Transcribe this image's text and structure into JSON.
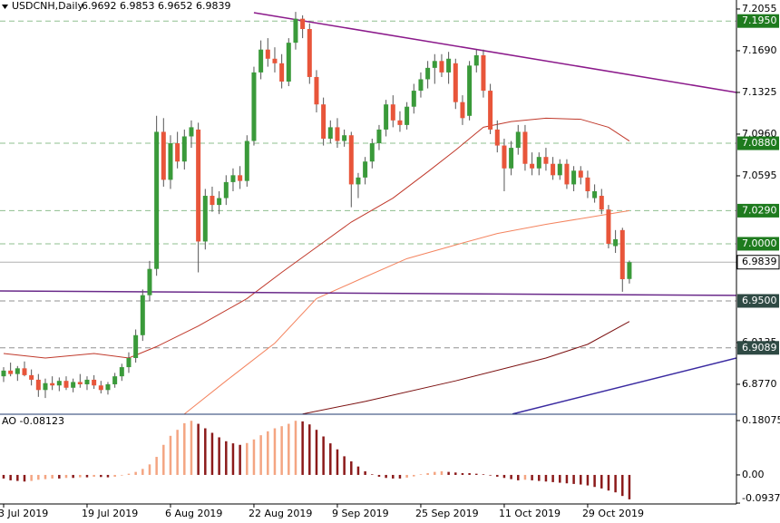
{
  "chart_data": [
    {
      "type": "candlestick",
      "title": "USDCNH,Daily",
      "up_color": "#3a9a3a",
      "down_color": "#e8553a",
      "wick_color": "#555555",
      "categories": [
        "3 Jul 2019",
        null,
        null,
        null,
        null,
        null,
        null,
        null,
        null,
        null,
        null,
        null,
        "19 Jul 2019",
        null,
        null,
        null,
        null,
        null,
        null,
        null,
        null,
        null,
        null,
        null,
        "6 Aug 2019",
        null,
        null,
        null,
        null,
        null,
        null,
        null,
        null,
        null,
        null,
        null,
        "22 Aug 2019",
        null,
        null,
        null,
        null,
        null,
        null,
        null,
        null,
        null,
        null,
        null,
        "9 Sep 2019",
        null,
        null,
        null,
        null,
        null,
        null,
        null,
        null,
        null,
        null,
        null,
        "25 Sep 2019",
        null,
        null,
        null,
        null,
        null,
        null,
        null,
        null,
        null,
        null,
        null,
        "11 Oct 2019",
        null,
        null,
        null,
        null,
        null,
        null,
        null,
        null,
        null,
        null,
        null,
        "29 Oct 2019",
        null,
        null,
        null,
        null,
        null,
        null
      ],
      "ohlc": [
        [
          6.884,
          6.892,
          6.879,
          6.889
        ],
        [
          6.889,
          6.896,
          6.884,
          6.886
        ],
        [
          6.886,
          6.893,
          6.88,
          6.891
        ],
        [
          6.891,
          6.897,
          6.884,
          6.885
        ],
        [
          6.885,
          6.89,
          6.876,
          6.881
        ],
        [
          6.881,
          6.886,
          6.866,
          6.872
        ],
        [
          6.872,
          6.882,
          6.865,
          6.878
        ],
        [
          6.878,
          6.884,
          6.872,
          6.876
        ],
        [
          6.876,
          6.883,
          6.871,
          6.88
        ],
        [
          6.88,
          6.884,
          6.872,
          6.874
        ],
        [
          6.874,
          6.882,
          6.87,
          6.879
        ],
        [
          6.879,
          6.886,
          6.874,
          6.877
        ],
        [
          6.877,
          6.884,
          6.872,
          6.881
        ],
        [
          6.881,
          6.885,
          6.873,
          6.876
        ],
        [
          6.876,
          6.88,
          6.869,
          6.872
        ],
        [
          6.872,
          6.879,
          6.868,
          6.877
        ],
        [
          6.877,
          6.887,
          6.874,
          6.884
        ],
        [
          6.884,
          6.895,
          6.88,
          6.892
        ],
        [
          6.892,
          6.905,
          6.887,
          6.9
        ],
        [
          6.9,
          6.925,
          6.896,
          6.92
        ],
        [
          6.92,
          6.96,
          6.915,
          6.955
        ],
        [
          6.955,
          6.985,
          6.95,
          6.978
        ],
        [
          6.978,
          7.112,
          6.972,
          7.098
        ],
        [
          7.098,
          7.11,
          7.05,
          7.056
        ],
        [
          7.056,
          7.095,
          7.048,
          7.088
        ],
        [
          7.088,
          7.098,
          7.066,
          7.072
        ],
        [
          7.072,
          7.1,
          7.065,
          7.094
        ],
        [
          7.094,
          7.108,
          7.084,
          7.102
        ],
        [
          7.1,
          7.106,
          6.975,
          7.002
        ],
        [
          7.002,
          7.048,
          6.995,
          7.042
        ],
        [
          7.042,
          7.05,
          7.028,
          7.034
        ],
        [
          7.034,
          7.046,
          7.026,
          7.04
        ],
        [
          7.04,
          7.06,
          7.034,
          7.054
        ],
        [
          7.054,
          7.066,
          7.046,
          7.06
        ],
        [
          7.06,
          7.068,
          7.048,
          7.055
        ],
        [
          7.055,
          7.095,
          7.05,
          7.09
        ],
        [
          7.09,
          7.155,
          7.086,
          7.15
        ],
        [
          7.15,
          7.178,
          7.144,
          7.17
        ],
        [
          7.17,
          7.18,
          7.155,
          7.162
        ],
        [
          7.162,
          7.172,
          7.15,
          7.158
        ],
        [
          7.158,
          7.166,
          7.136,
          7.142
        ],
        [
          7.142,
          7.18,
          7.138,
          7.176
        ],
        [
          7.176,
          7.203,
          7.17,
          7.197
        ],
        [
          7.197,
          7.2,
          7.18,
          7.188
        ],
        [
          7.188,
          7.193,
          7.14,
          7.146
        ],
        [
          7.146,
          7.152,
          7.115,
          7.122
        ],
        [
          7.122,
          7.128,
          7.086,
          7.092
        ],
        [
          7.092,
          7.108,
          7.088,
          7.102
        ],
        [
          7.102,
          7.11,
          7.084,
          7.09
        ],
        [
          7.09,
          7.1,
          7.085,
          7.095
        ],
        [
          7.095,
          7.098,
          7.032,
          7.052
        ],
        [
          7.052,
          7.062,
          7.04,
          7.058
        ],
        [
          7.058,
          7.076,
          7.052,
          7.072
        ],
        [
          7.072,
          7.092,
          7.066,
          7.088
        ],
        [
          7.088,
          7.104,
          7.082,
          7.1
        ],
        [
          7.1,
          7.126,
          7.094,
          7.122
        ],
        [
          7.122,
          7.13,
          7.102,
          7.108
        ],
        [
          7.108,
          7.116,
          7.098,
          7.104
        ],
        [
          7.104,
          7.124,
          7.1,
          7.12
        ],
        [
          7.12,
          7.14,
          7.114,
          7.134
        ],
        [
          7.134,
          7.15,
          7.128,
          7.144
        ],
        [
          7.144,
          7.16,
          7.136,
          7.154
        ],
        [
          7.154,
          7.166,
          7.14,
          7.16
        ],
        [
          7.16,
          7.166,
          7.146,
          7.15
        ],
        [
          7.15,
          7.168,
          7.14,
          7.162
        ],
        [
          7.158,
          7.162,
          7.118,
          7.124
        ],
        [
          7.124,
          7.13,
          7.104,
          7.11
        ],
        [
          7.112,
          7.16,
          7.108,
          7.156
        ],
        [
          7.156,
          7.17,
          7.15,
          7.165
        ],
        [
          7.165,
          7.17,
          7.128,
          7.134
        ],
        [
          7.134,
          7.14,
          7.096,
          7.1
        ],
        [
          7.1,
          7.108,
          7.08,
          7.086
        ],
        [
          7.086,
          7.092,
          7.046,
          7.066
        ],
        [
          7.066,
          7.09,
          7.06,
          7.084
        ],
        [
          7.084,
          7.104,
          7.078,
          7.098
        ],
        [
          7.098,
          7.104,
          7.064,
          7.07
        ],
        [
          7.07,
          7.08,
          7.06,
          7.066
        ],
        [
          7.066,
          7.08,
          7.06,
          7.076
        ],
        [
          7.076,
          7.084,
          7.064,
          7.07
        ],
        [
          7.07,
          7.076,
          7.056,
          7.06
        ],
        [
          7.06,
          7.074,
          7.056,
          7.07
        ],
        [
          7.07,
          7.074,
          7.048,
          7.052
        ],
        [
          7.052,
          7.068,
          7.046,
          7.064
        ],
        [
          7.064,
          7.068,
          7.052,
          7.058
        ],
        [
          7.058,
          7.064,
          7.04,
          7.046
        ],
        [
          7.04,
          7.052,
          7.036,
          7.046
        ],
        [
          7.042,
          7.048,
          7.026,
          7.03
        ],
        [
          7.03,
          7.034,
          6.996,
          7.0
        ],
        [
          6.998,
          7.012,
          6.992,
          7.004
        ],
        [
          7.012,
          7.014,
          6.958,
          6.969
        ],
        [
          6.9692,
          6.9853,
          6.9652,
          6.9839
        ]
      ],
      "xlim": [
        -0.52,
        105.4
      ],
      "ylim": [
        6.8508,
        7.2134
      ],
      "yticks": [
        7.2055,
        {
          "value": 7.169,
          "label": "7.1690"
        },
        7.1325,
        {
          "value": 7.096,
          "label": "7.0960"
        },
        7.0595,
        6.9135,
        {
          "value": 6.877,
          "label": "6.8770"
        }
      ],
      "levels": [
        {
          "value": 7.195,
          "label": "7.1950",
          "color": "#1e7b1e",
          "line_color": "#8fbf8f",
          "dashed": true
        },
        {
          "value": 7.088,
          "label": "7.0880",
          "color": "#1e7b1e",
          "line_color": "#8fbf8f",
          "dashed": true
        },
        {
          "value": 7.029,
          "label": "7.0290",
          "color": "#1e7b1e",
          "line_color": "#8fbf8f",
          "dashed": true
        },
        {
          "value": 7.0,
          "label": "7.0000",
          "color": "#1e7b1e",
          "line_color": "#8fbf8f",
          "dashed": true
        },
        {
          "value": 6.9839,
          "label": "6.9839",
          "color": "#ffffff",
          "line_color": "#b0b0b0",
          "dashed": false
        },
        {
          "value": 6.95,
          "label": "6.9500",
          "color": "#2f4a44",
          "line_color": "#909090",
          "dashed": true
        },
        {
          "value": 6.9089,
          "label": "6.9089",
          "color": "#2f4a44",
          "line_color": "#909090",
          "dashed": true
        }
      ],
      "moving_averages": [
        {
          "color": "#c0392b",
          "x": [
            0,
            6,
            13,
            18,
            22,
            28,
            35,
            40,
            45,
            50,
            56,
            61,
            65,
            69,
            73,
            78,
            83,
            87,
            90
          ],
          "values": [
            6.904,
            6.9,
            6.904,
            6.9,
            6.91,
            6.928,
            6.952,
            6.975,
            6.997,
            7.019,
            7.04,
            7.063,
            7.082,
            7.102,
            7.107,
            7.11,
            7.109,
            7.102,
            7.09
          ]
        },
        {
          "color": "#f4845f",
          "x": [
            26,
            32,
            39,
            45,
            52,
            58,
            65,
            71,
            78,
            84,
            90
          ],
          "values": [
            6.851,
            6.88,
            6.913,
            6.952,
            6.971,
            6.987,
            6.999,
            7.009,
            7.017,
            7.023,
            7.029
          ]
        },
        {
          "color": "#7b1010",
          "x": [
            43,
            52,
            65,
            78,
            84,
            90
          ],
          "values": [
            6.851,
            6.862,
            6.88,
            6.9,
            6.912,
            6.932
          ]
        }
      ],
      "trendlines": [
        {
          "color": "#8b1a8b",
          "x": [
            36,
            105.4
          ],
          "values": [
            7.2023,
            7.1325
          ]
        },
        {
          "color": "#3a2aa0",
          "x": [
            73.2,
            105.4
          ],
          "values": [
            6.851,
            6.9
          ]
        },
        {
          "color": "#6a2a8a",
          "x": [
            -0.52,
            105.4
          ],
          "values": [
            6.9587,
            6.9548
          ]
        }
      ]
    },
    {
      "type": "bar",
      "title": "AO -0.08123",
      "up_color": "#f4a582",
      "down_color": "#8b1a1a",
      "values": [
        -0.012,
        -0.018,
        -0.02,
        -0.022,
        -0.02,
        -0.016,
        -0.014,
        -0.012,
        -0.012,
        -0.01,
        -0.01,
        -0.008,
        -0.008,
        -0.006,
        -0.007,
        -0.008,
        -0.006,
        -0.002,
        0.004,
        0.01,
        0.02,
        0.035,
        0.06,
        0.1,
        0.13,
        0.15,
        0.172,
        0.18,
        0.17,
        0.155,
        0.14,
        0.125,
        0.112,
        0.105,
        0.1,
        0.106,
        0.118,
        0.132,
        0.145,
        0.155,
        0.162,
        0.17,
        0.18,
        0.178,
        0.168,
        0.15,
        0.128,
        0.105,
        0.085,
        0.062,
        0.045,
        0.028,
        0.012,
        0.002,
        -0.006,
        -0.01,
        -0.012,
        -0.012,
        -0.009,
        -0.005,
        0.002,
        0.006,
        0.01,
        0.012,
        0.01,
        0.008,
        0.006,
        0.006,
        0.004,
        0.002,
        -0.002,
        -0.006,
        -0.01,
        -0.014,
        -0.018,
        -0.016,
        -0.018,
        -0.02,
        -0.022,
        -0.024,
        -0.026,
        -0.028,
        -0.03,
        -0.032,
        -0.035,
        -0.04,
        -0.045,
        -0.052,
        -0.058,
        -0.07,
        -0.08123
      ],
      "ylim": [
        -0.0966,
        0.2018
      ],
      "yticks": [
        0.18075,
        {
          "value": 0,
          "label": "0.00"
        },
        -0.09371
      ]
    }
  ]
}
